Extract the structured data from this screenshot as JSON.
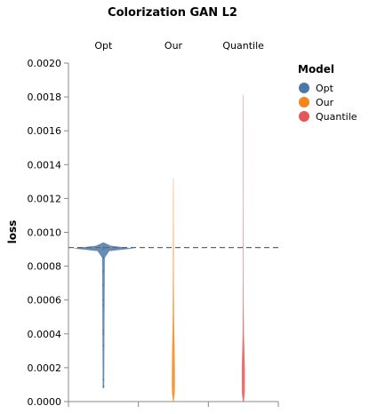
{
  "chart_data": {
    "type": "violin",
    "title": "Colorization GAN L2",
    "ylabel": "loss",
    "xlabel": "",
    "ylim": [
      0,
      0.002
    ],
    "yticks": [
      "0.0000",
      "0.0002",
      "0.0004",
      "0.0006",
      "0.0008",
      "0.0010",
      "0.0012",
      "0.0014",
      "0.0016",
      "0.0018",
      "0.0020"
    ],
    "reference_line": 0.00091,
    "legend": {
      "title": "Model",
      "position": "top-right",
      "entries": [
        {
          "name": "Opt",
          "color": "#4c78a8"
        },
        {
          "name": "Our",
          "color": "#f58518"
        },
        {
          "name": "Quantile",
          "color": "#e45756"
        }
      ]
    },
    "series": [
      {
        "name": "Opt",
        "color": "#4c78a8",
        "points": [
          9e-05,
          0.00013,
          0.00033,
          0.0004,
          0.00042,
          0.00057,
          0.0006,
          0.00069,
          0.00077,
          0.00085,
          0.0009,
          0.00091
        ],
        "density": [
          [
            8e-05,
            0.02
          ],
          [
            0.00085,
            0.04
          ],
          [
            0.00089,
            0.2
          ],
          [
            0.000905,
            1.0
          ],
          [
            0.00092,
            0.25
          ],
          [
            0.00094,
            0.0
          ]
        ]
      },
      {
        "name": "Our",
        "color": "#f58518",
        "density": [
          [
            0.0,
            0.15
          ],
          [
            5e-05,
            0.9
          ],
          [
            0.0001,
            1.0
          ],
          [
            0.0002,
            0.95
          ],
          [
            0.0003,
            0.8
          ],
          [
            0.0004,
            0.55
          ],
          [
            0.0005,
            0.4
          ],
          [
            0.0006,
            0.3
          ],
          [
            0.0007,
            0.25
          ],
          [
            0.0008,
            0.2
          ],
          [
            0.0009,
            0.16
          ],
          [
            0.001,
            0.12
          ],
          [
            0.0011,
            0.09
          ],
          [
            0.0012,
            0.06
          ],
          [
            0.0013,
            0.02
          ],
          [
            0.00132,
            0.0
          ]
        ]
      },
      {
        "name": "Quantile",
        "color": "#e45756",
        "density": [
          [
            0.0,
            0.25
          ],
          [
            5e-05,
            0.9
          ],
          [
            0.0001,
            1.0
          ],
          [
            0.0002,
            0.95
          ],
          [
            0.0003,
            0.65
          ],
          [
            0.0004,
            0.35
          ],
          [
            0.0005,
            0.2
          ],
          [
            0.0006,
            0.14
          ],
          [
            0.0008,
            0.1
          ],
          [
            0.001,
            0.08
          ],
          [
            0.0012,
            0.06
          ],
          [
            0.0014,
            0.04
          ],
          [
            0.0016,
            0.025
          ],
          [
            0.0018,
            0.01
          ],
          [
            0.00181,
            0.0
          ]
        ]
      }
    ]
  }
}
